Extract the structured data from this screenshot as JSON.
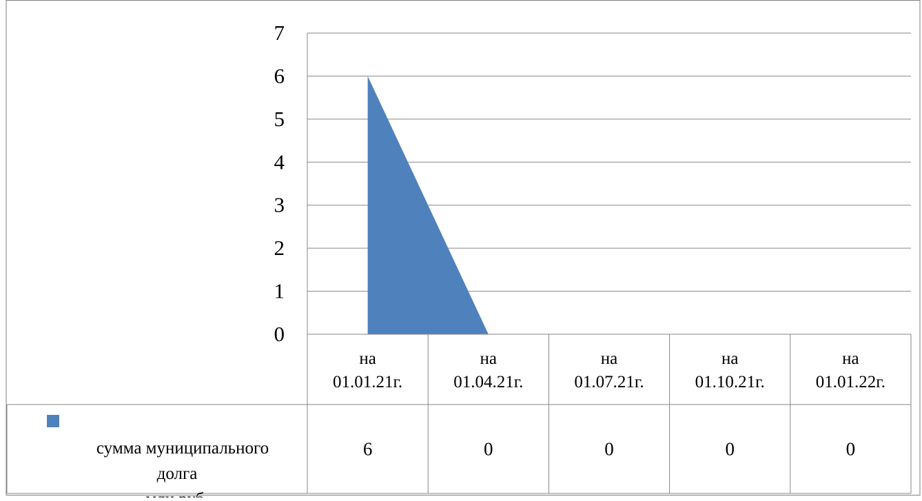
{
  "chart_data": {
    "type": "area",
    "categories": [
      "на 01.01.21г.",
      "на 01.04.21г.",
      "на 01.07.21г.",
      "на 01.10.21г.",
      "на 01.01.22г."
    ],
    "category_lines": [
      [
        "на",
        "01.01.21г."
      ],
      [
        "на",
        "01.04.21г."
      ],
      [
        "на",
        "01.07.21г."
      ],
      [
        "на",
        "01.10.21г."
      ],
      [
        "на",
        "01.01.22г."
      ]
    ],
    "series": [
      {
        "name": "сумма муниципального долга млн.руб.",
        "name_lines": [
          "сумма муниципального",
          "долга",
          "млн.руб."
        ],
        "values": [
          6,
          0,
          0,
          0,
          0
        ],
        "value_labels": [
          "6",
          "0",
          "0",
          "0",
          "0"
        ],
        "color": "#4f81bd"
      }
    ],
    "y_ticks": [
      "0",
      "1",
      "2",
      "3",
      "4",
      "5",
      "6",
      "7"
    ],
    "ylim": [
      0,
      7
    ],
    "grid": true,
    "legend_position": "data-table",
    "title": "",
    "xlabel": "",
    "ylabel": ""
  }
}
